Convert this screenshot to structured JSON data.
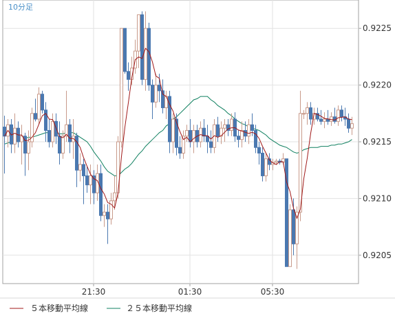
{
  "chart_data": {
    "type": "candlestick",
    "period_label": "10分足",
    "y_ticks": [
      "0.9205",
      "0.9210",
      "0.9215",
      "0.9220",
      "0.9225"
    ],
    "ylim": [
      0.92025,
      0.92275
    ],
    "x_ticks": [
      "21:30",
      "01:30",
      "05:30"
    ],
    "grid": true,
    "colors": {
      "up": "#c89a8a",
      "down": "#4a78b0",
      "ma5": "#a01818",
      "ma25": "#108060",
      "grid": "#e2e2e2",
      "axis": "#a0a0a0"
    },
    "series": [
      {
        "name": "５本移動平均線",
        "color": "#a01818"
      },
      {
        "name": "２５本移動平均線",
        "color": "#108060"
      }
    ],
    "candles": [
      [
        0.92163,
        0.92173,
        0.92122,
        0.92155
      ],
      [
        0.92155,
        0.9217,
        0.92145,
        0.92165
      ],
      [
        0.92165,
        0.9217,
        0.9214,
        0.92148
      ],
      [
        0.92148,
        0.92175,
        0.9214,
        0.92162
      ],
      [
        0.92162,
        0.92168,
        0.92145,
        0.9215
      ],
      [
        0.9215,
        0.92165,
        0.9213,
        0.92155
      ],
      [
        0.92155,
        0.92158,
        0.9212,
        0.9214
      ],
      [
        0.9214,
        0.9216,
        0.92125,
        0.9215
      ],
      [
        0.9215,
        0.9218,
        0.92145,
        0.92175
      ],
      [
        0.92175,
        0.92188,
        0.92168,
        0.9217
      ],
      [
        0.9217,
        0.92198,
        0.92165,
        0.92192
      ],
      [
        0.92192,
        0.92195,
        0.92175,
        0.92178
      ],
      [
        0.92178,
        0.92185,
        0.9215,
        0.9216
      ],
      [
        0.9216,
        0.9217,
        0.92145,
        0.9215
      ],
      [
        0.9215,
        0.92175,
        0.92145,
        0.92168
      ],
      [
        0.92168,
        0.92175,
        0.92148,
        0.92155
      ],
      [
        0.92155,
        0.92168,
        0.9213,
        0.9214
      ],
      [
        0.9214,
        0.9216,
        0.92135,
        0.92155
      ],
      [
        0.92155,
        0.92195,
        0.9215,
        0.92165
      ],
      [
        0.92165,
        0.9217,
        0.9214,
        0.9215
      ],
      [
        0.9215,
        0.9217,
        0.92135,
        0.92155
      ],
      [
        0.92155,
        0.92158,
        0.9211,
        0.92125
      ],
      [
        0.92125,
        0.9214,
        0.92115,
        0.9213
      ],
      [
        0.9213,
        0.92135,
        0.92095,
        0.9212
      ],
      [
        0.9212,
        0.92128,
        0.92105,
        0.92112
      ],
      [
        0.92112,
        0.9213,
        0.92095,
        0.9212
      ],
      [
        0.9212,
        0.92125,
        0.92095,
        0.92105
      ],
      [
        0.92105,
        0.9213,
        0.92098,
        0.92122
      ],
      [
        0.92122,
        0.9213,
        0.9208,
        0.92085
      ],
      [
        0.92085,
        0.92095,
        0.92075,
        0.92088
      ],
      [
        0.92088,
        0.92095,
        0.9206,
        0.92082
      ],
      [
        0.92082,
        0.92105,
        0.92077,
        0.92098
      ],
      [
        0.92098,
        0.9212,
        0.9209,
        0.92105
      ],
      [
        0.92105,
        0.92155,
        0.921,
        0.9215
      ],
      [
        0.9215,
        0.9225,
        0.92145,
        0.9225
      ],
      [
        0.9225,
        0.9225,
        0.9221,
        0.92212
      ],
      [
        0.92212,
        0.9222,
        0.92195,
        0.92205
      ],
      [
        0.92205,
        0.92225,
        0.922,
        0.92215
      ],
      [
        0.92215,
        0.9224,
        0.9221,
        0.9223
      ],
      [
        0.9223,
        0.92262,
        0.92215,
        0.92262
      ],
      [
        0.92262,
        0.92265,
        0.922,
        0.92205
      ],
      [
        0.92205,
        0.92265,
        0.92195,
        0.9225
      ],
      [
        0.9225,
        0.92255,
        0.92195,
        0.922
      ],
      [
        0.922,
        0.92205,
        0.9217,
        0.92185
      ],
      [
        0.92185,
        0.9221,
        0.9218,
        0.922
      ],
      [
        0.922,
        0.9221,
        0.92185,
        0.92195
      ],
      [
        0.92195,
        0.92205,
        0.92175,
        0.9218
      ],
      [
        0.9218,
        0.92195,
        0.9217,
        0.9219
      ],
      [
        0.9219,
        0.92195,
        0.9214,
        0.9215
      ],
      [
        0.9215,
        0.92175,
        0.9214,
        0.9217
      ],
      [
        0.9217,
        0.92175,
        0.92138,
        0.92145
      ],
      [
        0.92145,
        0.92155,
        0.92135,
        0.9214
      ],
      [
        0.9214,
        0.9216,
        0.92135,
        0.92155
      ],
      [
        0.92155,
        0.92165,
        0.9215,
        0.9216
      ],
      [
        0.9216,
        0.9217,
        0.92145,
        0.9215
      ],
      [
        0.9215,
        0.92165,
        0.9214,
        0.9216
      ],
      [
        0.9216,
        0.92165,
        0.92145,
        0.9215
      ],
      [
        0.9215,
        0.92168,
        0.92145,
        0.92162
      ],
      [
        0.92162,
        0.9217,
        0.9215,
        0.92155
      ],
      [
        0.92155,
        0.92165,
        0.9214,
        0.9215
      ],
      [
        0.9215,
        0.9216,
        0.9214,
        0.92145
      ],
      [
        0.92145,
        0.9217,
        0.9214,
        0.92165
      ],
      [
        0.92165,
        0.92172,
        0.9215,
        0.92155
      ],
      [
        0.92155,
        0.92168,
        0.92148,
        0.92162
      ],
      [
        0.92162,
        0.9217,
        0.9215,
        0.92165
      ],
      [
        0.92165,
        0.9217,
        0.92155,
        0.9216
      ],
      [
        0.9216,
        0.92175,
        0.92155,
        0.9217
      ],
      [
        0.9217,
        0.92176,
        0.9215,
        0.92155
      ],
      [
        0.92155,
        0.9216,
        0.92145,
        0.92152
      ],
      [
        0.92152,
        0.92168,
        0.92145,
        0.9216
      ],
      [
        0.9216,
        0.92168,
        0.9215,
        0.92155
      ],
      [
        0.92155,
        0.9217,
        0.92148,
        0.92165
      ],
      [
        0.92165,
        0.92175,
        0.92155,
        0.9216
      ],
      [
        0.9216,
        0.92165,
        0.9214,
        0.92145
      ],
      [
        0.92145,
        0.9215,
        0.9213,
        0.9214
      ],
      [
        0.9214,
        0.92145,
        0.92115,
        0.9212
      ],
      [
        0.9212,
        0.9214,
        0.92115,
        0.92135
      ],
      [
        0.92135,
        0.9214,
        0.92125,
        0.9213
      ],
      [
        0.9213,
        0.92135,
        0.92125,
        0.92132
      ],
      [
        0.92132,
        0.92135,
        0.9213,
        0.92133
      ],
      [
        0.92133,
        0.92135,
        0.9213,
        0.92132
      ],
      [
        0.92132,
        0.9214,
        0.9213,
        0.92135
      ],
      [
        0.92135,
        0.92135,
        0.9204,
        0.9204
      ],
      [
        0.9204,
        0.92095,
        0.9204,
        0.9209
      ],
      [
        0.9209,
        0.921,
        0.9205,
        0.9206
      ],
      [
        0.9206,
        0.92093,
        0.92038,
        0.92088
      ],
      [
        0.92088,
        0.92195,
        0.9208,
        0.92175
      ],
      [
        0.92175,
        0.92178,
        0.9217,
        0.92175
      ],
      [
        0.92175,
        0.92185,
        0.92165,
        0.9218
      ],
      [
        0.9218,
        0.92185,
        0.92165,
        0.9217
      ],
      [
        0.9217,
        0.9218,
        0.92165,
        0.92175
      ],
      [
        0.92175,
        0.9218,
        0.92168,
        0.9217
      ],
      [
        0.9217,
        0.92178,
        0.92165,
        0.92168
      ],
      [
        0.92168,
        0.92176,
        0.92162,
        0.9217
      ],
      [
        0.9217,
        0.92178,
        0.92165,
        0.92168
      ],
      [
        0.92168,
        0.92176,
        0.92164,
        0.92172
      ],
      [
        0.92172,
        0.9218,
        0.92166,
        0.92168
      ],
      [
        0.92168,
        0.92182,
        0.92164,
        0.92178
      ],
      [
        0.92178,
        0.92182,
        0.92168,
        0.92172
      ],
      [
        0.92172,
        0.9218,
        0.92164,
        0.9217
      ],
      [
        0.9217,
        0.92175,
        0.92158,
        0.92162
      ],
      [
        0.92162,
        0.92172,
        0.92156,
        0.92166
      ]
    ],
    "ma25": [
      0.92148,
      0.92149,
      0.9215,
      0.92151,
      0.92152,
      0.92152,
      0.92153,
      0.92154,
      0.92154,
      0.92155,
      0.92156,
      0.92157,
      0.92158,
      0.92158,
      0.92159,
      0.92158,
      0.92157,
      0.92157,
      0.92158,
      0.92158,
      0.92158,
      0.92156,
      0.92154,
      0.92152,
      0.9215,
      0.92146,
      0.92141,
      0.92137,
      0.92133,
      0.92128,
      0.92124,
      0.92122,
      0.9212,
      0.9212,
      0.92123,
      0.92126,
      0.92128,
      0.92131,
      0.92135,
      0.92139,
      0.92142,
      0.92146,
      0.92149,
      0.92152,
      0.92155,
      0.92158,
      0.9216,
      0.92164,
      0.92166,
      0.9217,
      0.92172,
      0.92175,
      0.92178,
      0.92181,
      0.92184,
      0.92187,
      0.92188,
      0.9219,
      0.9219,
      0.9219,
      0.92187,
      0.92185,
      0.92182,
      0.9218,
      0.92178,
      0.92175,
      0.92173,
      0.9217,
      0.92168,
      0.92166,
      0.92165,
      0.92163,
      0.92162,
      0.92161,
      0.9216,
      0.92158,
      0.92156,
      0.92153,
      0.92151,
      0.92149,
      0.92147,
      0.92146,
      0.92145,
      0.92143,
      0.92141,
      0.9214,
      0.92141,
      0.92143,
      0.92144,
      0.92145,
      0.92145,
      0.92145,
      0.92146,
      0.92146,
      0.92146,
      0.92147,
      0.92147,
      0.92148,
      0.92148,
      0.92149,
      0.9215,
      0.92152
    ]
  },
  "legend": {
    "ma5_label": "５本移動平均線",
    "ma25_label": "２５本移動平均線"
  }
}
